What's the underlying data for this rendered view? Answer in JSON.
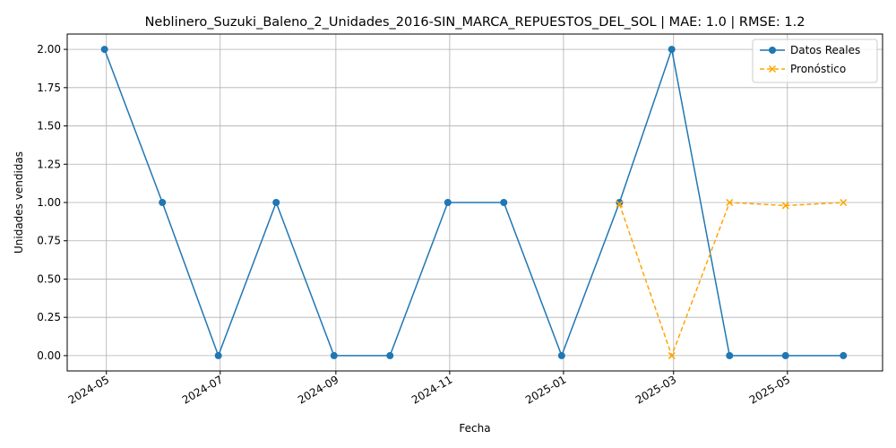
{
  "chart_data": {
    "type": "line",
    "title": "Neblinero_Suzuki_Baleno_2_Unidades_2016-SIN_MARCA_REPUESTOS_DEL_SOL | MAE: 1.0 | RMSE: 1.2",
    "xlabel": "Fecha",
    "ylabel": "Unidades vendidas",
    "xlim": [
      "2024-04-10",
      "2025-06-21"
    ],
    "ylim": [
      -0.1,
      2.1
    ],
    "x_ticks": [
      "2024-05",
      "2024-07",
      "2024-09",
      "2024-11",
      "2025-01",
      "2025-03",
      "2025-05"
    ],
    "y_ticks": [
      "0.00",
      "0.25",
      "0.50",
      "0.75",
      "1.00",
      "1.25",
      "1.50",
      "1.75",
      "2.00"
    ],
    "grid": true,
    "legend_position": "top-right",
    "series": [
      {
        "name": "Datos Reales",
        "color": "#1f77b4",
        "marker": "circle",
        "line_style": "solid",
        "x": [
          "2024-04-30",
          "2024-05-31",
          "2024-06-30",
          "2024-07-31",
          "2024-08-31",
          "2024-09-30",
          "2024-10-31",
          "2024-11-30",
          "2024-12-31",
          "2025-01-31",
          "2025-02-28",
          "2025-03-31",
          "2025-04-30",
          "2025-05-31"
        ],
        "values": [
          2,
          1,
          0,
          1,
          0,
          0,
          1,
          1,
          0,
          1,
          2,
          0,
          0,
          0
        ]
      },
      {
        "name": "Pronóstico",
        "color": "#ffa500",
        "marker": "x",
        "line_style": "dashed",
        "x": [
          "2025-01-31",
          "2025-02-28",
          "2025-03-31",
          "2025-04-30",
          "2025-05-31"
        ],
        "values": [
          0.99,
          0.0,
          1.0,
          0.98,
          1.0
        ]
      }
    ]
  }
}
